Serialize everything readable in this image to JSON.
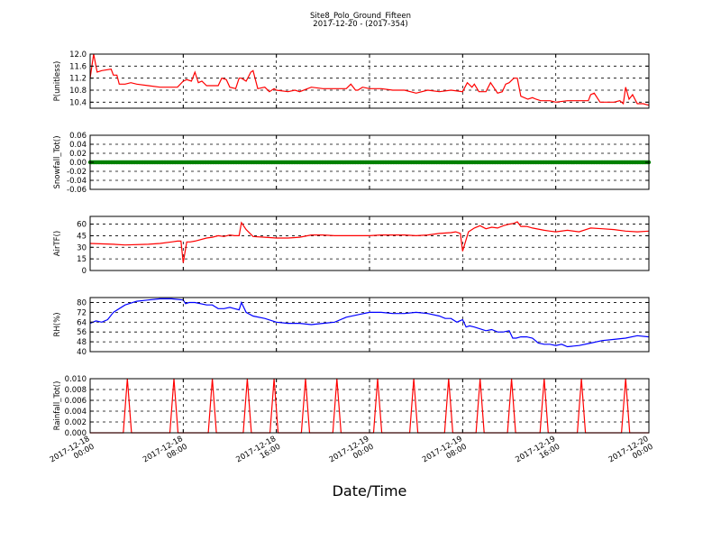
{
  "figure": {
    "title_line1": "Site8_Polo_Ground_Fifteen",
    "title_line2": "2017-12-20 - (2017-354)",
    "xlabel": "Date/Time",
    "x_ticks": [
      {
        "t": 0,
        "line1": "2017-12-18",
        "line2": "00:00"
      },
      {
        "t": 8,
        "line1": "2017-12-18",
        "line2": "08:00"
      },
      {
        "t": 16,
        "line1": "2017-12-18",
        "line2": "16:00"
      },
      {
        "t": 24,
        "line1": "2017-12-19",
        "line2": "00:00"
      },
      {
        "t": 32,
        "line1": "2017-12-19",
        "line2": "08:00"
      },
      {
        "t": 40,
        "line1": "2017-12-19",
        "line2": "16:00"
      },
      {
        "t": 48,
        "line1": "2017-12-20",
        "line2": "00:00"
      }
    ]
  },
  "chart_data": [
    {
      "type": "line",
      "ylabel": "P(unitless)",
      "ylim": [
        10.2,
        12.0
      ],
      "yticks": [
        "10.4",
        "10.8",
        "11.2",
        "11.6",
        "12.0"
      ],
      "yticks_num": [
        10.4,
        10.8,
        11.2,
        11.6,
        12.0
      ],
      "grid": true,
      "color": "#ff0000",
      "series": [
        {
          "x": [
            0,
            0.3,
            0.6,
            1,
            1.8,
            2,
            2.3,
            2.5,
            3,
            3.5,
            4,
            5,
            6,
            7,
            7.5,
            8,
            8.3,
            8.7,
            9,
            9.3,
            9.6,
            10,
            11,
            11.3,
            11.7,
            12,
            12.5,
            12.8,
            13,
            13.4,
            13.8,
            14,
            14.4,
            15,
            15.4,
            15.8,
            16,
            17,
            17.6,
            18,
            19,
            20,
            21,
            22,
            22.4,
            22.8,
            23,
            23.4,
            24,
            25,
            26,
            27,
            28,
            29,
            30,
            31,
            32,
            32.4,
            32.8,
            33,
            33.4,
            34,
            34.4,
            35,
            35.4,
            35.7,
            36,
            36.4,
            36.7,
            37,
            37.6,
            38,
            38.3,
            38.7,
            39,
            39.5,
            40,
            41,
            42,
            42.8,
            43,
            43.3,
            43.8,
            44,
            45,
            45.5,
            45.8,
            46,
            46.3,
            46.6,
            47,
            47.5,
            48
          ],
          "y": [
            11.2,
            12.0,
            11.4,
            11.45,
            11.5,
            11.3,
            11.3,
            11.0,
            11.0,
            11.05,
            11.0,
            10.95,
            10.9,
            10.9,
            10.9,
            11.1,
            11.15,
            11.1,
            11.4,
            11.05,
            11.1,
            10.95,
            10.95,
            11.2,
            11.15,
            10.9,
            10.85,
            11.2,
            11.2,
            11.1,
            11.4,
            11.45,
            10.85,
            10.9,
            10.75,
            10.85,
            10.8,
            10.75,
            10.8,
            10.75,
            10.9,
            10.85,
            10.85,
            10.85,
            11.0,
            10.8,
            10.8,
            10.9,
            10.85,
            10.85,
            10.8,
            10.8,
            10.7,
            10.8,
            10.75,
            10.8,
            10.75,
            11.05,
            10.9,
            11.0,
            10.75,
            10.75,
            11.05,
            10.7,
            10.75,
            11.0,
            11.05,
            11.2,
            11.2,
            10.6,
            10.5,
            10.55,
            10.5,
            10.45,
            10.45,
            10.45,
            10.4,
            10.45,
            10.45,
            10.45,
            10.65,
            10.7,
            10.4,
            10.4,
            10.4,
            10.45,
            10.35,
            10.9,
            10.5,
            10.65,
            10.35,
            10.35,
            10.3
          ]
        }
      ]
    },
    {
      "type": "line",
      "ylabel": "Snowfall_Tot()",
      "ylim": [
        -0.06,
        0.06
      ],
      "yticks": [
        "-0.06",
        "-0.04",
        "-0.02",
        "0.00",
        "0.02",
        "0.04",
        "0.06"
      ],
      "yticks_num": [
        -0.06,
        -0.04,
        -0.02,
        0.0,
        0.02,
        0.04,
        0.06
      ],
      "grid": true,
      "color": "#008000",
      "marker": "dot",
      "series": [
        {
          "x": [
            0,
            48
          ],
          "y": [
            0.0,
            0.0
          ]
        }
      ]
    },
    {
      "type": "line",
      "ylabel": "AirTF()",
      "ylim": [
        0,
        70
      ],
      "yticks": [
        "0",
        "15",
        "30",
        "45",
        "60"
      ],
      "yticks_num": [
        0,
        15,
        30,
        45,
        60
      ],
      "grid": true,
      "color": "#ff0000",
      "series": [
        {
          "x": [
            0,
            2,
            3,
            5,
            6,
            7,
            7.5,
            7.8,
            8,
            8.3,
            8.6,
            9,
            10,
            10.5,
            11,
            11.5,
            12,
            12.4,
            12.8,
            13,
            13.4,
            14,
            15,
            16,
            17,
            18,
            19,
            20,
            21,
            22,
            23,
            24,
            25,
            26,
            27,
            28,
            29,
            30,
            31,
            31.4,
            31.8,
            32,
            32.5,
            33,
            33.5,
            34,
            34.5,
            35,
            35.5,
            36,
            36.4,
            36.7,
            37,
            37.5,
            38,
            39,
            39.5,
            40,
            41,
            42,
            43,
            44,
            45,
            46,
            47,
            48
          ],
          "y": [
            35,
            34,
            33,
            34,
            35,
            37,
            38,
            38,
            10,
            37,
            37,
            38,
            42,
            43,
            45,
            44,
            46,
            45,
            45,
            62,
            53,
            44,
            43,
            42,
            42,
            43,
            46,
            46,
            45,
            45,
            45,
            45,
            46,
            46,
            46,
            45,
            46,
            48,
            49,
            50,
            48,
            25,
            50,
            55,
            58,
            54,
            56,
            55,
            58,
            60,
            61,
            63,
            57,
            57,
            55,
            52,
            51,
            50,
            52,
            50,
            55,
            54,
            53,
            51,
            50,
            51
          ]
        }
      ]
    },
    {
      "type": "line",
      "ylabel": "RH(%)",
      "ylim": [
        40,
        84
      ],
      "yticks": [
        "40",
        "48",
        "56",
        "64",
        "72",
        "80"
      ],
      "yticks_num": [
        40,
        48,
        56,
        64,
        72,
        80
      ],
      "grid": true,
      "color": "#0000ff",
      "series": [
        {
          "x": [
            0,
            0.5,
            1,
            1.5,
            2,
            3,
            4,
            5,
            6,
            7,
            8,
            8.2,
            8.5,
            9,
            10,
            10.5,
            11,
            11.5,
            12,
            12.4,
            12.8,
            13,
            13.4,
            14,
            15,
            16,
            17,
            18,
            19,
            20,
            21,
            22,
            23,
            24,
            25,
            26,
            27,
            28,
            29,
            30,
            30.5,
            31,
            31.5,
            32,
            32.3,
            32.6,
            33,
            34,
            34.5,
            35,
            35.5,
            36,
            36.3,
            36.6,
            37,
            37.5,
            38,
            38.5,
            39,
            39.5,
            40,
            40.5,
            41,
            42,
            43,
            44,
            45,
            46,
            47,
            48
          ],
          "y": [
            63,
            65,
            64,
            66,
            72,
            78,
            81,
            82,
            83,
            83,
            82,
            79,
            80,
            80,
            78,
            78,
            75,
            75,
            76,
            75,
            74,
            80,
            72,
            69,
            67,
            64,
            63,
            63,
            62,
            63,
            64,
            68,
            70,
            72,
            72,
            71,
            71,
            72,
            71,
            69,
            67,
            67,
            64,
            66,
            60,
            61,
            60,
            57,
            58,
            56,
            56,
            57,
            51,
            51,
            52,
            52,
            51,
            47,
            46,
            46,
            45,
            46,
            44,
            45,
            47,
            49,
            50,
            51,
            53,
            52
          ]
        }
      ]
    },
    {
      "type": "line",
      "ylabel": "Rainfall_Tot()",
      "ylim": [
        0.0,
        0.01
      ],
      "yticks": [
        "0.000",
        "0.002",
        "0.004",
        "0.006",
        "0.008",
        "0.010"
      ],
      "yticks_num": [
        0.0,
        0.002,
        0.004,
        0.006,
        0.008,
        0.01
      ],
      "grid": true,
      "color": "#ff0000",
      "spikes_at": [
        3.2,
        7.2,
        10.5,
        13.5,
        15.8,
        18.5,
        21.2,
        24.7,
        27.8,
        30.8,
        33.5,
        36.2,
        39.0,
        42.2,
        46.0
      ],
      "spike_value": 0.01
    }
  ]
}
